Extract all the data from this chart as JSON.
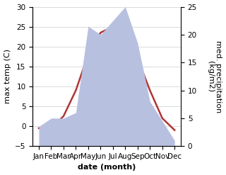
{
  "months": [
    "Jan",
    "Feb",
    "Mar",
    "Apr",
    "May",
    "Jun",
    "Jul",
    "Aug",
    "Sep",
    "Oct",
    "Nov",
    "Dec"
  ],
  "temp": [
    -0.5,
    -0.5,
    2.5,
    9.0,
    18.0,
    23.5,
    25.0,
    24.5,
    17.0,
    9.0,
    2.0,
    -1.0
  ],
  "precip": [
    3.5,
    5.0,
    5.0,
    6.0,
    21.5,
    20.0,
    22.5,
    25.0,
    18.5,
    8.0,
    4.5,
    1.0
  ],
  "temp_color": "#b03535",
  "precip_fill_color": "#b8c0e0",
  "xlabel": "date (month)",
  "ylabel_left": "max temp (C)",
  "ylabel_right": "med. precipitation\n(kg/m2)",
  "ylim_left": [
    -5,
    30
  ],
  "ylim_right": [
    0,
    25
  ],
  "yticks_left": [
    -5,
    0,
    5,
    10,
    15,
    20,
    25,
    30
  ],
  "yticks_right": [
    0,
    5,
    10,
    15,
    20,
    25
  ],
  "label_fontsize": 8,
  "tick_fontsize": 7.5
}
